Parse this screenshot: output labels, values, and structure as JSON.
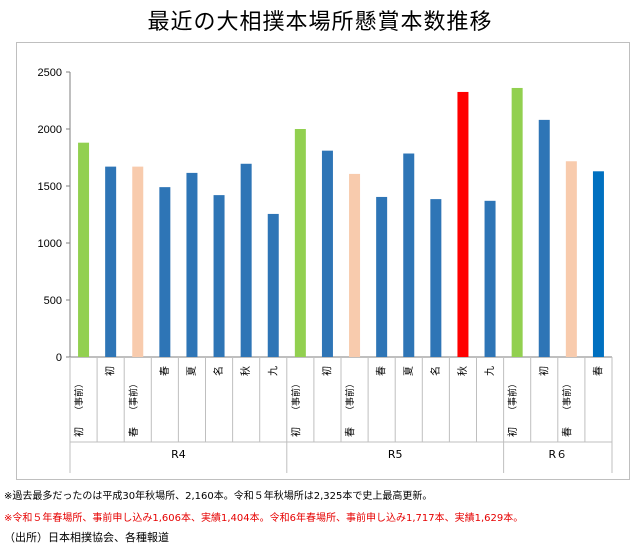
{
  "title": "最近の大相撲本場所懸賞本数推移",
  "chart_data": {
    "type": "bar",
    "title": "最近の大相撲本場所懸賞本数推移",
    "ylim": [
      0,
      2500
    ],
    "yticks": [
      0,
      500,
      1000,
      1500,
      2000,
      2500
    ],
    "grid": false,
    "legend": "none",
    "groups": [
      {
        "label": "R4",
        "start": 0,
        "end": 7
      },
      {
        "label": "R5",
        "start": 8,
        "end": 15
      },
      {
        "label": "R６",
        "start": 16,
        "end": 19
      }
    ],
    "bars": [
      {
        "label": [
          "初",
          "（事前）"
        ],
        "value": 1880,
        "color": "#92d050"
      },
      {
        "label": [
          "初"
        ],
        "value": 1670,
        "color": "#2e75b6"
      },
      {
        "label": [
          "春",
          "（事前）"
        ],
        "value": 1670,
        "color": "#f8cbad"
      },
      {
        "label": [
          "春"
        ],
        "value": 1490,
        "color": "#2e75b6"
      },
      {
        "label": [
          "夏"
        ],
        "value": 1615,
        "color": "#2e75b6"
      },
      {
        "label": [
          "名"
        ],
        "value": 1420,
        "color": "#2e75b6"
      },
      {
        "label": [
          "秋"
        ],
        "value": 1695,
        "color": "#2e75b6"
      },
      {
        "label": [
          "九"
        ],
        "value": 1255,
        "color": "#2e75b6"
      },
      {
        "label": [
          "初",
          "（事前）"
        ],
        "value": 2000,
        "color": "#92d050"
      },
      {
        "label": [
          "初"
        ],
        "value": 1810,
        "color": "#2e75b6"
      },
      {
        "label": [
          "春",
          "（事前）"
        ],
        "value": 1606,
        "color": "#f8cbad"
      },
      {
        "label": [
          "春"
        ],
        "value": 1404,
        "color": "#2e75b6"
      },
      {
        "label": [
          "夏"
        ],
        "value": 1785,
        "color": "#2e75b6"
      },
      {
        "label": [
          "名"
        ],
        "value": 1385,
        "color": "#2e75b6"
      },
      {
        "label": [
          "秋"
        ],
        "value": 2325,
        "color": "#ff0000"
      },
      {
        "label": [
          "九"
        ],
        "value": 1370,
        "color": "#2e75b6"
      },
      {
        "label": [
          "初",
          "（事前）"
        ],
        "value": 2360,
        "color": "#92d050"
      },
      {
        "label": [
          "初"
        ],
        "value": 2080,
        "color": "#2e75b6"
      },
      {
        "label": [
          "春",
          "（事前）"
        ],
        "value": 1717,
        "color": "#f8cbad"
      },
      {
        "label": [
          "春"
        ],
        "value": 1629,
        "color": "#0070c0"
      }
    ]
  },
  "notes": {
    "note1": "※過去最多だったのは平成30年秋場所、2,160本。令和５年秋場所は2,325本で史上最高更新。",
    "note2": "※令和５年春場所、事前申し込み1,606本、実績1,404本。令和6年春場所、事前申し込み1,717本、実績1,629本。",
    "source": "（出所）日本相撲協会、各種報道"
  }
}
